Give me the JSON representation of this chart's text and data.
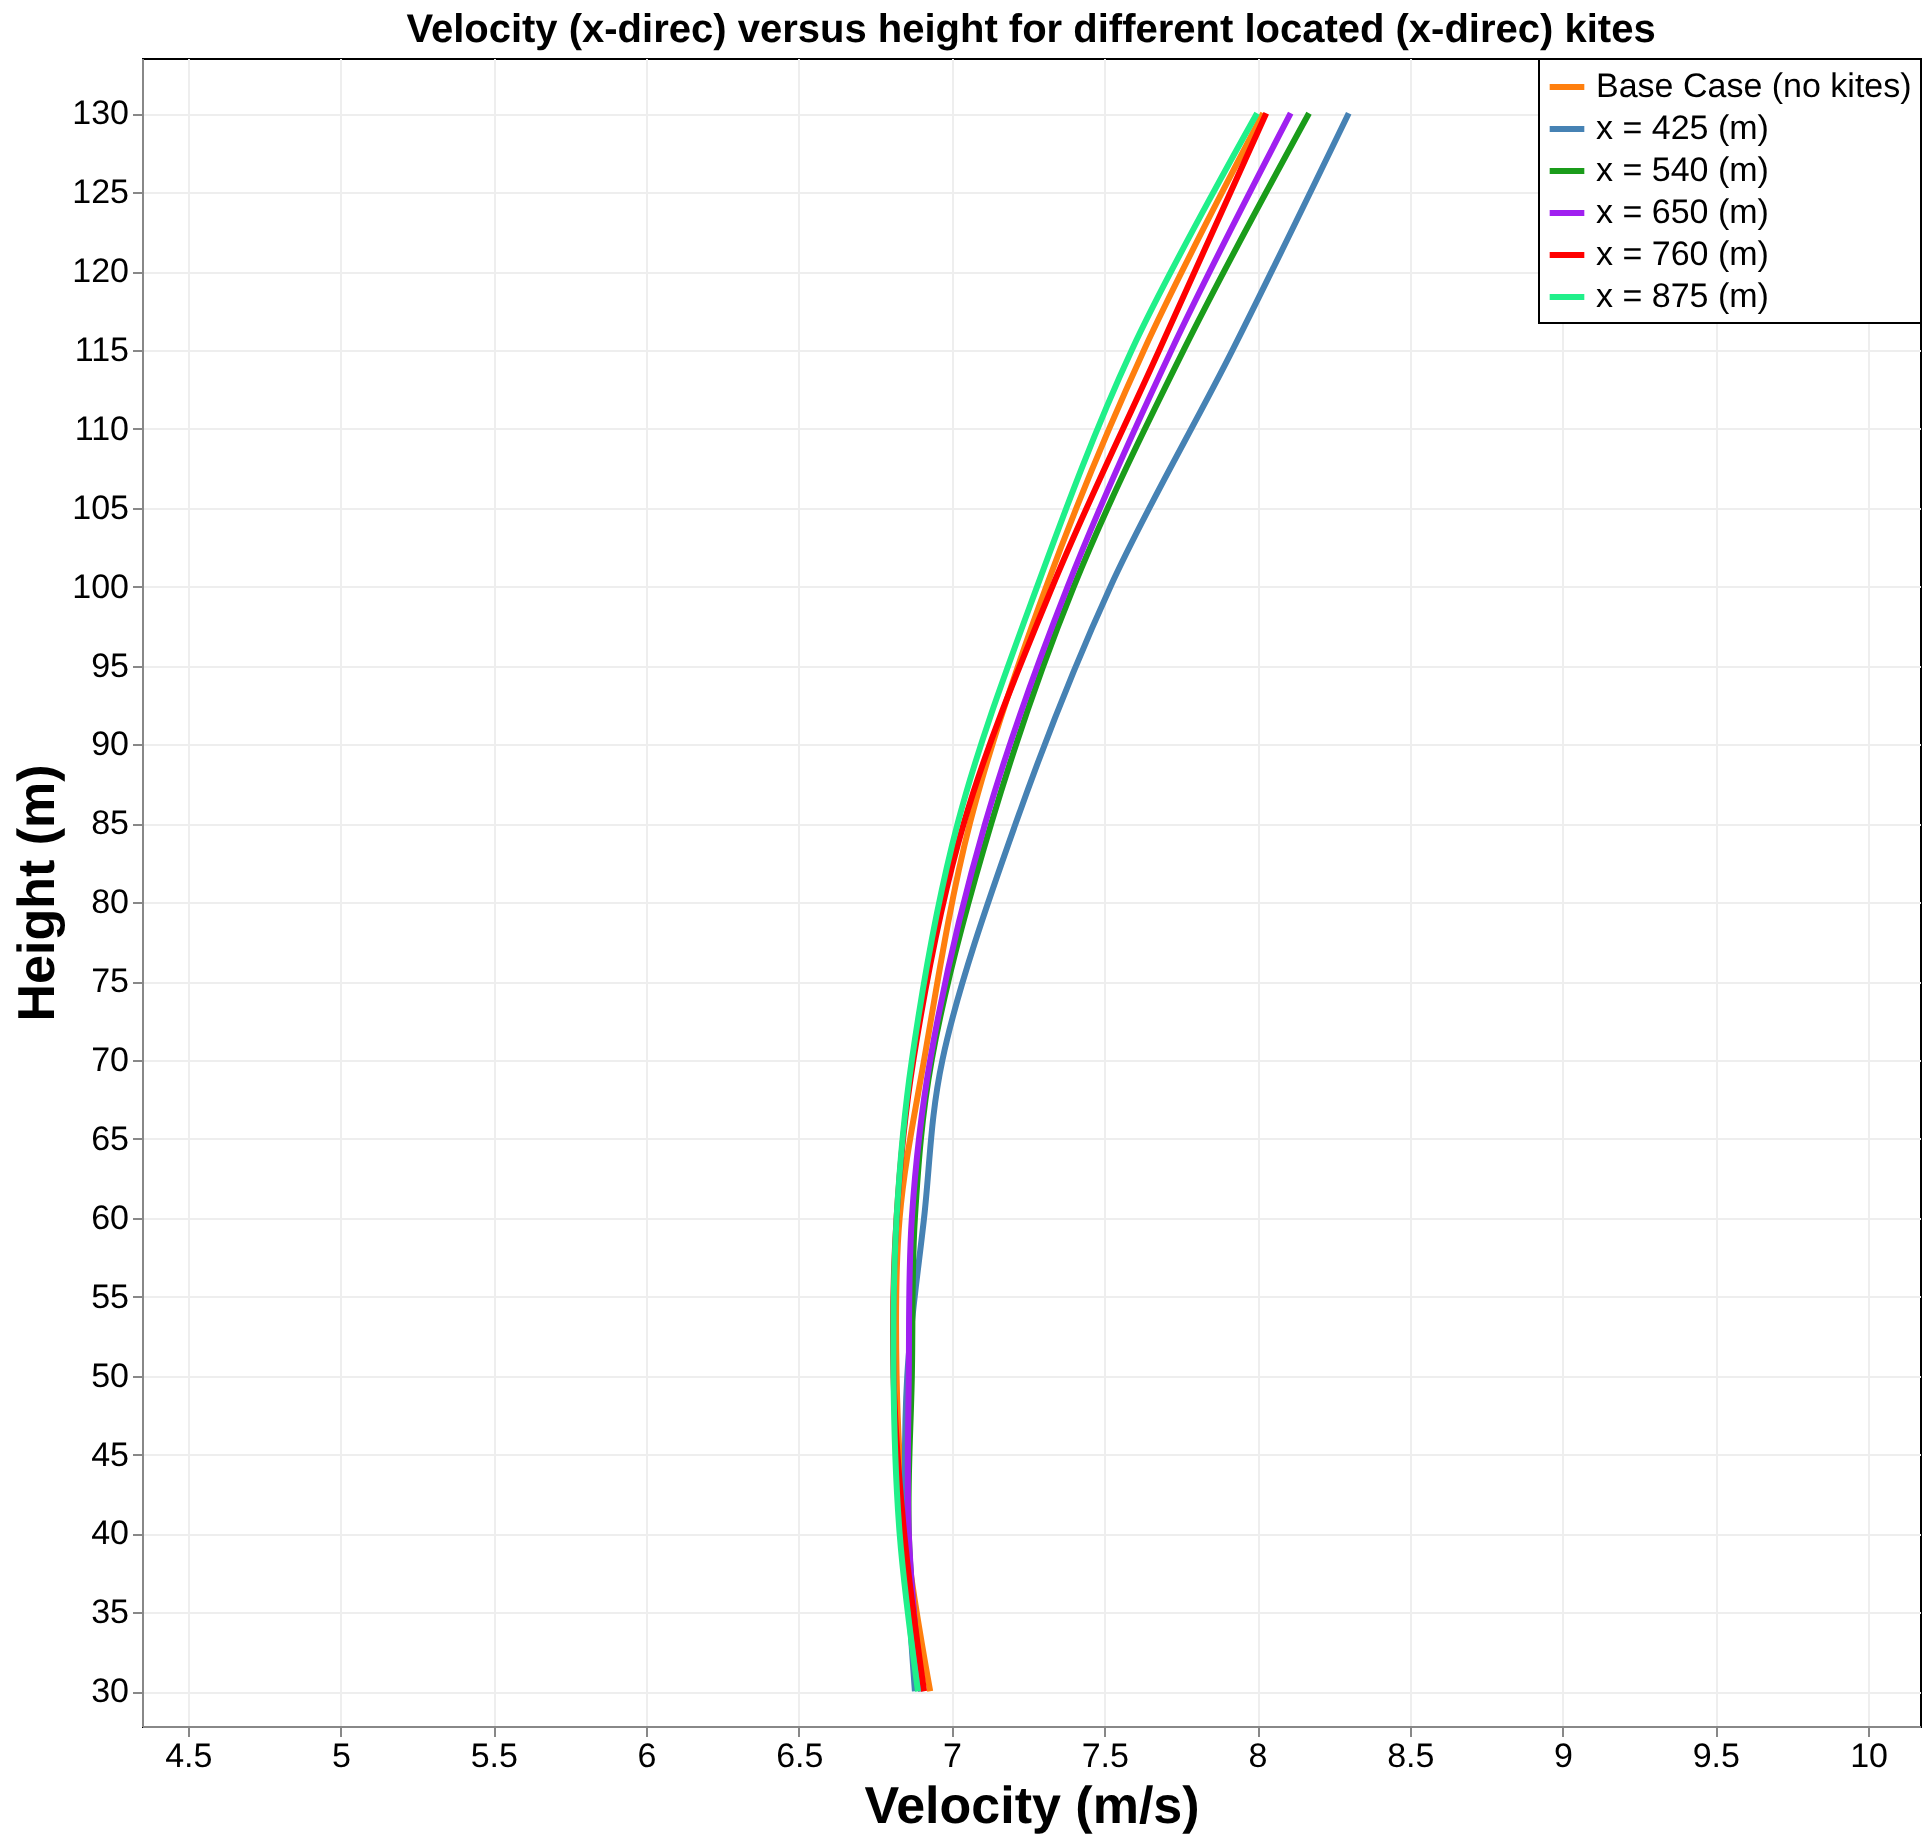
{
  "chart_data": {
    "type": "line",
    "title": "Velocity (x-direc) versus height for different located (x-direc) kites",
    "xlabel": "Velocity (m/s)",
    "ylabel": "Height (m)",
    "xlim": [
      4.35,
      10.17
    ],
    "ylim": [
      27.8,
      133.5
    ],
    "xticks": [
      4.5,
      5,
      5.5,
      6,
      6.5,
      7,
      7.5,
      8,
      8.5,
      9,
      9.5,
      10
    ],
    "yticks": [
      30,
      35,
      40,
      45,
      50,
      55,
      60,
      65,
      70,
      75,
      80,
      85,
      90,
      95,
      100,
      105,
      110,
      115,
      120,
      125,
      130
    ],
    "grid": true,
    "legend": "top right",
    "line_style": "solid",
    "marker": "none",
    "series": [
      {
        "name": "Base Case (no kites)",
        "color": "#ff7f0e",
        "x": [
          6.93,
          6.85,
          6.82,
          6.83,
          6.91,
          7.06,
          7.31,
          7.63,
          8.02
        ],
        "values": [
          30,
          40,
          50,
          60,
          70,
          85,
          100,
          115,
          130
        ]
      },
      {
        "name": "x = 425 (m)",
        "color": "#4682b4",
        "x": [
          6.88,
          6.85,
          6.855,
          6.91,
          6.97,
          7.21,
          7.52,
          7.92,
          8.3
        ],
        "values": [
          30,
          40,
          50,
          60,
          70,
          85,
          100,
          115,
          130
        ]
      },
      {
        "name": "x = 540 (m)",
        "color": "#1a9c1a",
        "x": [
          6.9,
          6.86,
          6.87,
          6.88,
          6.935,
          7.13,
          7.4,
          7.76,
          8.17
        ],
        "values": [
          30,
          40,
          50,
          60,
          70,
          85,
          100,
          115,
          130
        ]
      },
      {
        "name": "x = 650 (m)",
        "color": "#a020f0",
        "x": [
          6.9,
          6.86,
          6.86,
          6.87,
          6.93,
          7.11,
          7.38,
          7.72,
          8.11
        ],
        "values": [
          30,
          40,
          50,
          60,
          70,
          85,
          100,
          115,
          130
        ]
      },
      {
        "name": "x = 760 (m)",
        "color": "#ff0000",
        "x": [
          6.91,
          6.845,
          6.81,
          6.82,
          6.875,
          7.04,
          7.33,
          7.68,
          8.03
        ],
        "values": [
          30,
          40,
          50,
          60,
          70,
          85,
          100,
          115,
          130
        ]
      },
      {
        "name": "x = 875 (m)",
        "color": "#20f08a",
        "x": [
          6.89,
          6.83,
          6.81,
          6.82,
          6.87,
          7.02,
          7.28,
          7.59,
          8.0
        ],
        "values": [
          30,
          40,
          50,
          60,
          70,
          85,
          100,
          115,
          130
        ]
      }
    ]
  }
}
